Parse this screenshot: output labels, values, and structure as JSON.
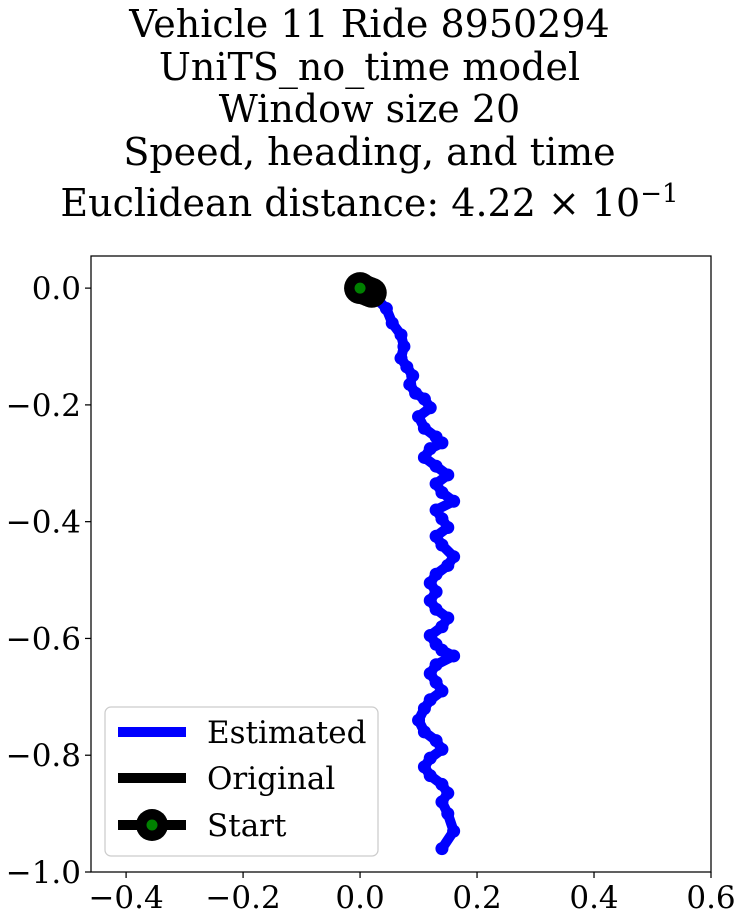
{
  "title": {
    "line1": "Vehicle 11 Ride 8950294",
    "line2": "UniTS_no_time model",
    "line3": "Window size 20",
    "line4": "Speed, heading, and time",
    "line5_prefix": "Euclidean distance: 4.22 × 10",
    "line5_exponent": "−1"
  },
  "chart_data": {
    "type": "line",
    "title": "Vehicle 11 Ride 8950294 / UniTS_no_time model / Window size 20 / Speed, heading, and time / Euclidean distance: 4.22 × 10^−1",
    "xlabel": "",
    "ylabel": "",
    "xlim": [
      -0.46,
      0.6
    ],
    "ylim": [
      -1.0,
      0.055
    ],
    "grid": false,
    "legend_position": "lower-left",
    "x_ticks": [
      -0.4,
      -0.2,
      0.0,
      0.2,
      0.4,
      0.6
    ],
    "x_tick_labels": [
      "−0.4",
      "−0.2",
      "0.0",
      "0.2",
      "0.4",
      "0.6"
    ],
    "y_ticks": [
      0.0,
      -0.2,
      -0.4,
      -0.6,
      -0.8,
      -1.0
    ],
    "y_tick_labels": [
      "0.0",
      "−0.2",
      "−0.4",
      "−0.6",
      "−0.8",
      "−1.0"
    ],
    "series": [
      {
        "name": "Estimated",
        "color": "#0000ff",
        "x": [
          0.0,
          0.02,
          0.045,
          0.055,
          0.07,
          0.075,
          0.07,
          0.08,
          0.09,
          0.085,
          0.095,
          0.11,
          0.12,
          0.1,
          0.11,
          0.13,
          0.14,
          0.12,
          0.11,
          0.13,
          0.15,
          0.13,
          0.14,
          0.16,
          0.13,
          0.14,
          0.15,
          0.13,
          0.14,
          0.16,
          0.15,
          0.13,
          0.12,
          0.13,
          0.12,
          0.13,
          0.15,
          0.14,
          0.12,
          0.13,
          0.14,
          0.16,
          0.13,
          0.12,
          0.13,
          0.14,
          0.12,
          0.11,
          0.1,
          0.11,
          0.13,
          0.14,
          0.12,
          0.11,
          0.12,
          0.14,
          0.15,
          0.14,
          0.15,
          0.16,
          0.14
        ],
        "y": [
          0.0,
          -0.01,
          -0.035,
          -0.06,
          -0.08,
          -0.1,
          -0.12,
          -0.135,
          -0.15,
          -0.165,
          -0.18,
          -0.19,
          -0.205,
          -0.22,
          -0.24,
          -0.255,
          -0.265,
          -0.275,
          -0.29,
          -0.305,
          -0.32,
          -0.335,
          -0.35,
          -0.365,
          -0.38,
          -0.395,
          -0.41,
          -0.425,
          -0.44,
          -0.46,
          -0.475,
          -0.49,
          -0.505,
          -0.52,
          -0.535,
          -0.55,
          -0.565,
          -0.58,
          -0.595,
          -0.61,
          -0.62,
          -0.63,
          -0.645,
          -0.66,
          -0.675,
          -0.69,
          -0.705,
          -0.72,
          -0.74,
          -0.76,
          -0.775,
          -0.79,
          -0.805,
          -0.82,
          -0.835,
          -0.85,
          -0.865,
          -0.88,
          -0.9,
          -0.93,
          -0.96
        ]
      },
      {
        "name": "Original",
        "color": "#000000",
        "x": [
          0.0,
          0.005,
          0.01,
          0.015,
          0.02
        ],
        "y": [
          0.0,
          -0.002,
          -0.004,
          -0.006,
          -0.008
        ]
      },
      {
        "name": "Start",
        "color": "#000000",
        "marker_face": "#008000",
        "x": [
          0.0
        ],
        "y": [
          0.0
        ]
      }
    ],
    "legend": [
      {
        "label": "Estimated",
        "color": "#0000ff",
        "style": "line"
      },
      {
        "label": "Original",
        "color": "#000000",
        "style": "line"
      },
      {
        "label": "Start",
        "color": "#000000",
        "style": "line-marker",
        "marker_face": "#008000"
      }
    ]
  }
}
